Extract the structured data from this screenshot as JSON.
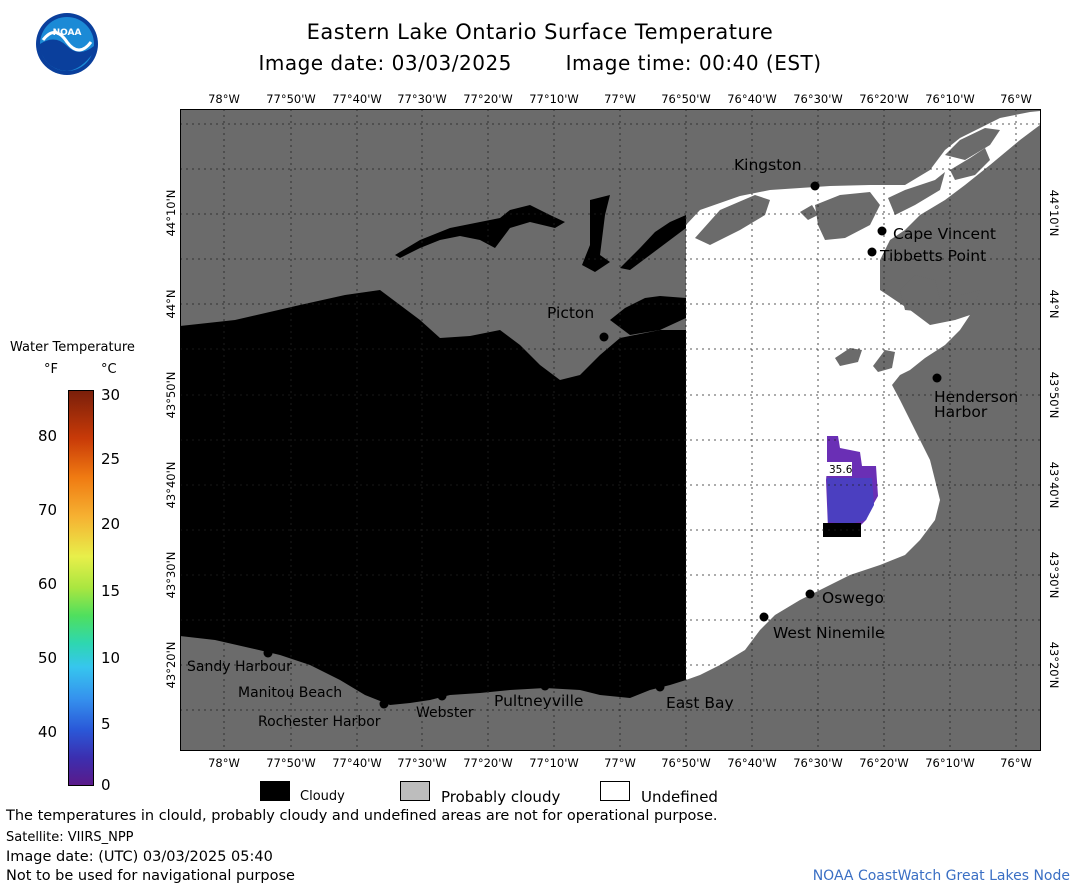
{
  "header": {
    "title": "Eastern Lake Ontario Surface Temperature",
    "image_date": "Image date: 03/03/2025",
    "image_time": "Image time: 00:40 (EST)",
    "logo_text": "NOAA"
  },
  "axes": {
    "longitude_labels": [
      "78°W",
      "77°50'W",
      "77°40'W",
      "77°30'W",
      "77°20'W",
      "77°10'W",
      "77°W",
      "76°50'W",
      "76°40'W",
      "76°30'W",
      "76°20'W",
      "76°10'W",
      "76°W"
    ],
    "latitude_labels": [
      "44°10'N",
      "44°N",
      "43°50'N",
      "43°40'N",
      "43°30'N",
      "43°20'N"
    ]
  },
  "places": {
    "kingston": "Kingston",
    "cape_vincent": "Cape Vincent",
    "tibbetts_point": "Tibbetts Point",
    "picton": "Picton",
    "henderson_harbor_1": "Henderson",
    "henderson_harbor_2": "Harbor",
    "oswego": "Oswego",
    "west_ninemile": "West Ninemile",
    "sandy_harbour": "Sandy Harbour",
    "manitou_beach": "Manitou Beach",
    "rochester_harbor": "Rochester Harbor",
    "webster": "Webster",
    "pultneyville": "Pultneyville",
    "east_bay": "East Bay"
  },
  "measurement": {
    "value": "35.6",
    "unit": "°F"
  },
  "colorbar": {
    "title": "Water Temperature",
    "f_label": "°F",
    "c_label": "°C",
    "f_ticks": [
      "80",
      "70",
      "60",
      "50",
      "40"
    ],
    "c_ticks": [
      "30",
      "25",
      "20",
      "15",
      "10",
      "5",
      "0"
    ],
    "c_range": [
      0,
      30
    ]
  },
  "legend": {
    "cloudy": "Cloudy",
    "probably_cloudy": "Probably cloudy",
    "undefined": "Undefined"
  },
  "colors": {
    "land": "#6b6b6b",
    "cloud": "#000000",
    "probably_cloudy": "#bdbdbd",
    "undefined": "#ffffff",
    "credit": "#3a6fc4"
  },
  "footer": {
    "note": "The temperatures in clould, probably cloudy and undefined areas are not for operational purpose.",
    "satellite": "Satellite: VIIRS_NPP",
    "utc_date": "Image date: (UTC) 03/03/2025  05:40",
    "nav_warning": "Not to be used for navigational purpose",
    "credit": "NOAA CoastWatch Great Lakes Node"
  }
}
